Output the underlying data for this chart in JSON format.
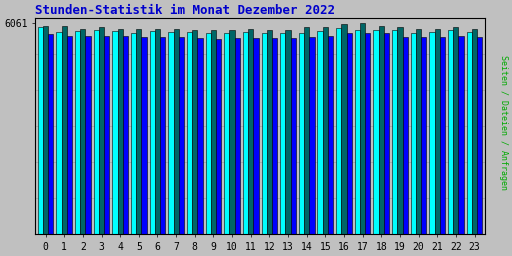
{
  "title": "Stunden-Statistik im Monat Dezember 2022",
  "title_color": "#0000cc",
  "ylabel": "Seiten / Dateien / Anfragen",
  "ylabel_color": "#00aa00",
  "background_color": "#c0c0c0",
  "plot_bg_color": "#c0c0c0",
  "border_color": "#000000",
  "xlabel_ticks": [
    0,
    1,
    2,
    3,
    4,
    5,
    6,
    7,
    8,
    9,
    10,
    11,
    12,
    13,
    14,
    15,
    16,
    17,
    18,
    19,
    20,
    21,
    22,
    23
  ],
  "ytick_label": "6061",
  "ytick_value": 6061,
  "bar_width": 0.28,
  "colors": [
    "#00ffff",
    "#006666",
    "#0000ff"
  ],
  "bar_edge_color": "#000000",
  "values_cyan": [
    5950,
    5820,
    5830,
    5870,
    5830,
    5790,
    5830,
    5820,
    5810,
    5780,
    5790,
    5800,
    5790,
    5780,
    5790,
    5840,
    5920,
    5870,
    5870,
    5870,
    5790,
    5800,
    5860,
    5820
  ],
  "values_green": [
    5980,
    5990,
    5880,
    5940,
    5890,
    5880,
    5900,
    5900,
    5870,
    5860,
    5870,
    5880,
    5870,
    5860,
    5950,
    5940,
    6040,
    6061,
    5980,
    5950,
    5890,
    5890,
    5950,
    5890
  ],
  "values_blue": [
    5750,
    5680,
    5680,
    5680,
    5680,
    5650,
    5670,
    5650,
    5640,
    5620,
    5640,
    5640,
    5630,
    5630,
    5650,
    5690,
    5780,
    5780,
    5780,
    5660,
    5650,
    5660,
    5690,
    5670
  ],
  "ymin": 0,
  "ymax": 6200,
  "xlim_left": -0.55,
  "xlim_right": 23.55
}
